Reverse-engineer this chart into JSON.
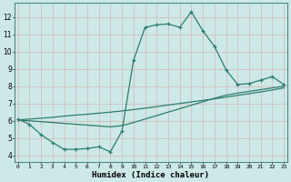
{
  "title": "",
  "xlabel": "Humidex (Indice chaleur)",
  "ylabel": "",
  "bg_color": "#cce9e7",
  "grid_color": "#b8d8d6",
  "line_color": "#2d7d6e",
  "x_ticks": [
    0,
    1,
    2,
    3,
    4,
    5,
    6,
    7,
    8,
    9,
    10,
    11,
    12,
    13,
    14,
    15,
    16,
    17,
    18,
    19,
    20,
    21,
    22,
    23
  ],
  "y_ticks": [
    4,
    5,
    6,
    7,
    8,
    9,
    10,
    11,
    12
  ],
  "xlim": [
    -0.3,
    23.3
  ],
  "ylim": [
    3.6,
    12.8
  ],
  "curve1_x": [
    0,
    1,
    2,
    3,
    4,
    5,
    6,
    7,
    8,
    9,
    10,
    11,
    12,
    13,
    14,
    15,
    16,
    17,
    18,
    19,
    20,
    21,
    22,
    23
  ],
  "curve1_y": [
    6.1,
    5.8,
    5.2,
    4.75,
    4.35,
    4.35,
    4.4,
    4.5,
    4.2,
    5.4,
    9.5,
    11.4,
    11.55,
    11.6,
    11.4,
    12.3,
    11.2,
    10.3,
    8.95,
    8.1,
    8.15,
    8.35,
    8.55,
    8.1
  ],
  "curve2_x": [
    0,
    1,
    2,
    3,
    4,
    5,
    6,
    7,
    8,
    9,
    10,
    11,
    12,
    13,
    14,
    15,
    16,
    17,
    18,
    19,
    20,
    21,
    22,
    23
  ],
  "curve2_y": [
    6.05,
    6.1,
    6.15,
    6.2,
    6.27,
    6.33,
    6.38,
    6.44,
    6.5,
    6.57,
    6.65,
    6.73,
    6.82,
    6.91,
    7.0,
    7.09,
    7.18,
    7.27,
    7.37,
    7.47,
    7.57,
    7.67,
    7.78,
    7.9
  ],
  "curve3_x": [
    0,
    1,
    2,
    3,
    4,
    5,
    6,
    7,
    8,
    9,
    10,
    11,
    12,
    13,
    14,
    15,
    16,
    17,
    18,
    19,
    20,
    21,
    22,
    23
  ],
  "curve3_y": [
    6.05,
    6.0,
    5.95,
    5.9,
    5.85,
    5.8,
    5.75,
    5.7,
    5.65,
    5.72,
    5.9,
    6.1,
    6.3,
    6.5,
    6.7,
    6.9,
    7.1,
    7.3,
    7.48,
    7.6,
    7.7,
    7.8,
    7.9,
    8.0
  ]
}
